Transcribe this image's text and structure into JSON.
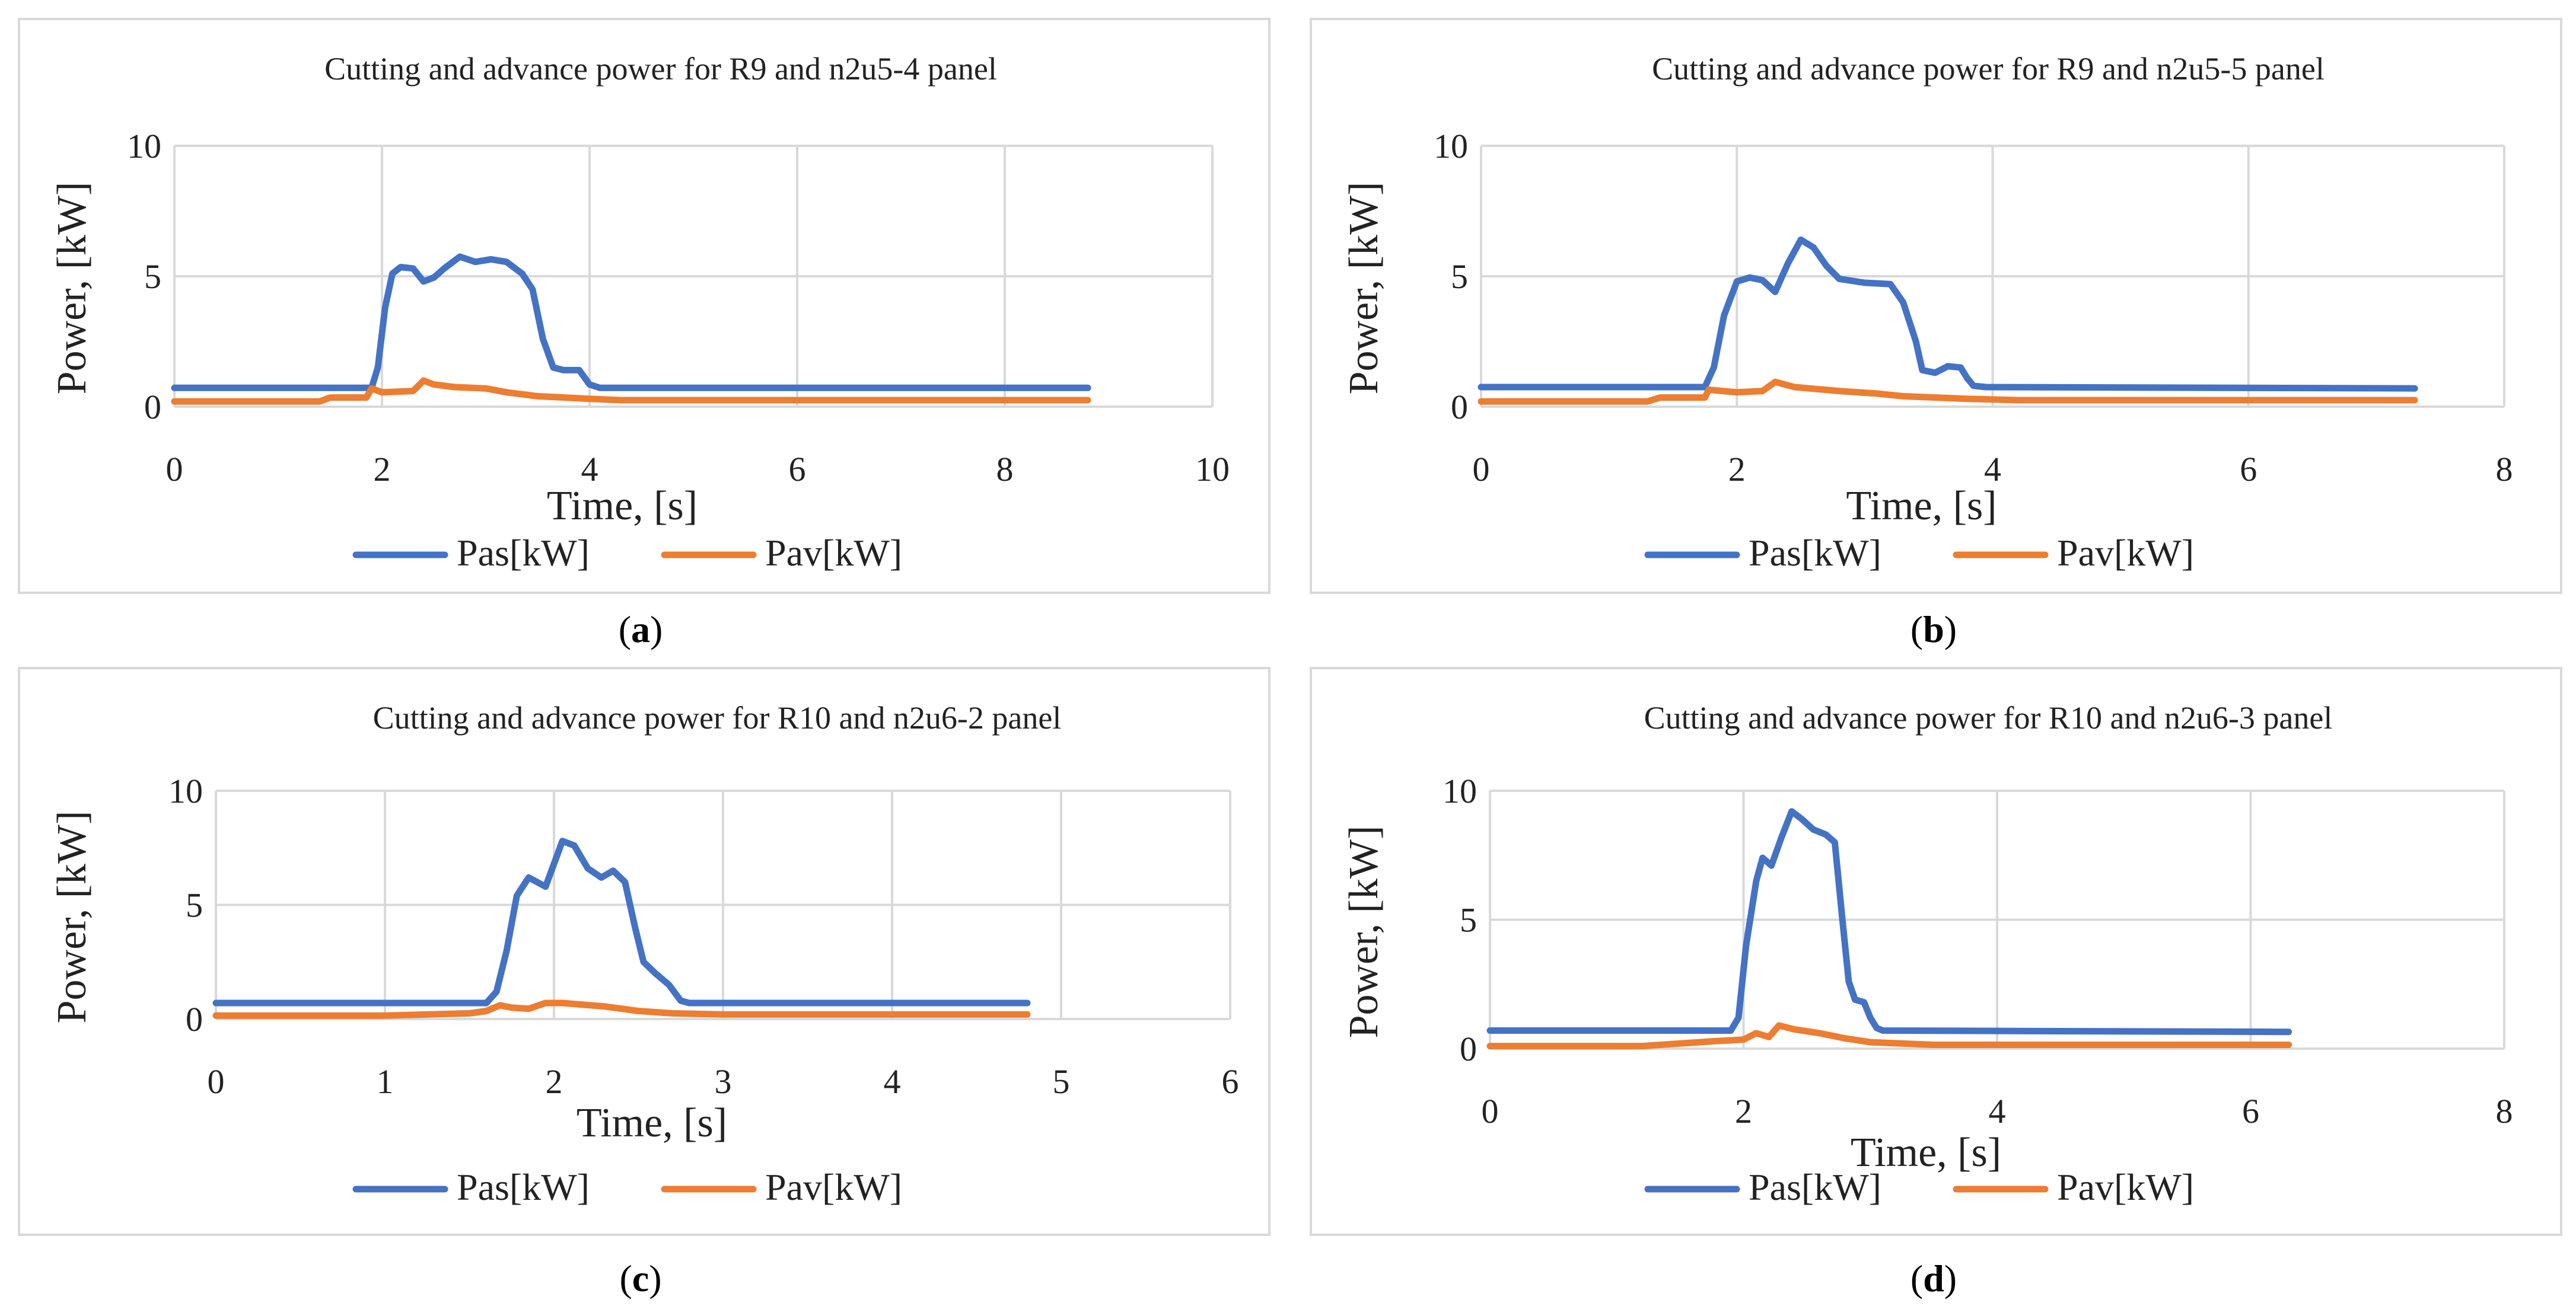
{
  "colors": {
    "pas": "#4472C4",
    "pav": "#ED7D31",
    "grid": "#d9d9d9",
    "border": "#d9d9d9"
  },
  "panels": [
    {
      "caption_open": "(",
      "caption_letter": "a",
      "caption_close": ")",
      "chart_data": {
        "type": "line",
        "title": "Cutting and advance power for R9 and n2u5-4 panel",
        "xlabel": "Time, [s]",
        "ylabel": "Power, [kW]",
        "xlim": [
          0,
          10
        ],
        "ylim": [
          0,
          10
        ],
        "xticks": [
          0,
          2,
          4,
          6,
          8,
          10
        ],
        "yticks": [
          0,
          5,
          10
        ],
        "legend": "bottom",
        "series": [
          {
            "name": "Pas[kW]",
            "key": "pas",
            "points": [
              [
                0,
                0.72
              ],
              [
                1.9,
                0.72
              ],
              [
                1.96,
                1.5
              ],
              [
                2.03,
                3.8
              ],
              [
                2.1,
                5.1
              ],
              [
                2.18,
                5.35
              ],
              [
                2.3,
                5.3
              ],
              [
                2.4,
                4.8
              ],
              [
                2.5,
                4.95
              ],
              [
                2.6,
                5.3
              ],
              [
                2.75,
                5.75
              ],
              [
                2.9,
                5.55
              ],
              [
                3.05,
                5.65
              ],
              [
                3.2,
                5.55
              ],
              [
                3.35,
                5.1
              ],
              [
                3.45,
                4.5
              ],
              [
                3.55,
                2.6
              ],
              [
                3.65,
                1.5
              ],
              [
                3.75,
                1.4
              ],
              [
                3.9,
                1.4
              ],
              [
                4.0,
                0.85
              ],
              [
                4.1,
                0.72
              ],
              [
                8.8,
                0.72
              ]
            ]
          },
          {
            "name": "Pav[kW]",
            "key": "pav",
            "points": [
              [
                0,
                0.2
              ],
              [
                1.4,
                0.2
              ],
              [
                1.5,
                0.35
              ],
              [
                1.85,
                0.35
              ],
              [
                1.9,
                0.7
              ],
              [
                2.0,
                0.55
              ],
              [
                2.3,
                0.6
              ],
              [
                2.4,
                1.0
              ],
              [
                2.5,
                0.85
              ],
              [
                2.7,
                0.75
              ],
              [
                3.0,
                0.7
              ],
              [
                3.2,
                0.55
              ],
              [
                3.5,
                0.4
              ],
              [
                4.0,
                0.3
              ],
              [
                4.3,
                0.25
              ],
              [
                8.8,
                0.25
              ]
            ]
          }
        ]
      }
    },
    {
      "caption_open": "(",
      "caption_letter": "b",
      "caption_close": ")",
      "chart_data": {
        "type": "line",
        "title": "Cutting and advance power for R9 and n2u5-5 panel",
        "xlabel": "Time, [s]",
        "ylabel": "Power, [kW]",
        "xlim": [
          0,
          8
        ],
        "ylim": [
          0,
          10
        ],
        "xticks": [
          0,
          2,
          4,
          6,
          8
        ],
        "yticks": [
          0,
          5,
          10
        ],
        "legend": "bottom",
        "series": [
          {
            "name": "Pas[kW]",
            "key": "pas",
            "points": [
              [
                0,
                0.75
              ],
              [
                1.75,
                0.75
              ],
              [
                1.82,
                1.5
              ],
              [
                1.9,
                3.5
              ],
              [
                2.0,
                4.8
              ],
              [
                2.1,
                4.95
              ],
              [
                2.2,
                4.85
              ],
              [
                2.3,
                4.4
              ],
              [
                2.4,
                5.5
              ],
              [
                2.5,
                6.4
              ],
              [
                2.6,
                6.1
              ],
              [
                2.7,
                5.4
              ],
              [
                2.8,
                4.9
              ],
              [
                3.0,
                4.75
              ],
              [
                3.2,
                4.7
              ],
              [
                3.3,
                4.0
              ],
              [
                3.4,
                2.5
              ],
              [
                3.45,
                1.4
              ],
              [
                3.55,
                1.3
              ],
              [
                3.65,
                1.55
              ],
              [
                3.75,
                1.5
              ],
              [
                3.8,
                1.1
              ],
              [
                3.85,
                0.8
              ],
              [
                3.95,
                0.75
              ],
              [
                7.3,
                0.7
              ]
            ]
          },
          {
            "name": "Pav[kW]",
            "key": "pav",
            "points": [
              [
                0,
                0.2
              ],
              [
                1.3,
                0.2
              ],
              [
                1.4,
                0.35
              ],
              [
                1.75,
                0.35
              ],
              [
                1.78,
                0.65
              ],
              [
                2.0,
                0.55
              ],
              [
                2.2,
                0.6
              ],
              [
                2.3,
                0.95
              ],
              [
                2.45,
                0.75
              ],
              [
                2.8,
                0.6
              ],
              [
                3.1,
                0.5
              ],
              [
                3.3,
                0.4
              ],
              [
                3.8,
                0.3
              ],
              [
                4.2,
                0.25
              ],
              [
                7.3,
                0.25
              ]
            ]
          }
        ]
      }
    },
    {
      "caption_open": "(",
      "caption_letter": "c",
      "caption_close": ")",
      "chart_data": {
        "type": "line",
        "title": "Cutting and advance power for R10 and n2u6-2 panel",
        "xlabel": "Time, [s]",
        "ylabel": "Power, [kW]",
        "xlim": [
          0,
          6
        ],
        "ylim": [
          0,
          10
        ],
        "xticks": [
          0,
          1,
          2,
          3,
          4,
          5,
          6
        ],
        "yticks": [
          0,
          5,
          10
        ],
        "legend": "bottom",
        "series": [
          {
            "name": "Pas[kW]",
            "key": "pas",
            "points": [
              [
                0,
                0.7
              ],
              [
                1.6,
                0.7
              ],
              [
                1.66,
                1.2
              ],
              [
                1.72,
                3.0
              ],
              [
                1.78,
                5.4
              ],
              [
                1.85,
                6.2
              ],
              [
                1.95,
                5.8
              ],
              [
                2.0,
                6.8
              ],
              [
                2.05,
                7.8
              ],
              [
                2.12,
                7.6
              ],
              [
                2.2,
                6.6
              ],
              [
                2.28,
                6.2
              ],
              [
                2.35,
                6.5
              ],
              [
                2.42,
                6.0
              ],
              [
                2.48,
                4.0
              ],
              [
                2.53,
                2.5
              ],
              [
                2.6,
                2.0
              ],
              [
                2.68,
                1.5
              ],
              [
                2.75,
                0.8
              ],
              [
                2.8,
                0.7
              ],
              [
                4.8,
                0.7
              ]
            ]
          },
          {
            "name": "Pav[kW]",
            "key": "pav",
            "points": [
              [
                0,
                0.15
              ],
              [
                1.0,
                0.15
              ],
              [
                1.5,
                0.25
              ],
              [
                1.6,
                0.35
              ],
              [
                1.68,
                0.6
              ],
              [
                1.75,
                0.5
              ],
              [
                1.85,
                0.45
              ],
              [
                1.95,
                0.7
              ],
              [
                2.05,
                0.7
              ],
              [
                2.3,
                0.55
              ],
              [
                2.5,
                0.35
              ],
              [
                2.7,
                0.25
              ],
              [
                3.0,
                0.2
              ],
              [
                4.8,
                0.2
              ]
            ]
          }
        ]
      }
    },
    {
      "caption_open": "(",
      "caption_letter": "d",
      "caption_close": ")",
      "chart_data": {
        "type": "line",
        "title": "Cutting and advance power for R10 and n2u6-3 panel",
        "xlabel": "Time, [s]",
        "ylabel": "Power, [kW]",
        "xlim": [
          0,
          8
        ],
        "ylim": [
          0,
          10
        ],
        "xticks": [
          0,
          2,
          4,
          6,
          8
        ],
        "yticks": [
          0,
          5,
          10
        ],
        "legend": "bottom",
        "series": [
          {
            "name": "Pas[kW]",
            "key": "pas",
            "points": [
              [
                0,
                0.7
              ],
              [
                1.9,
                0.7
              ],
              [
                1.96,
                1.2
              ],
              [
                2.02,
                4.0
              ],
              [
                2.1,
                6.5
              ],
              [
                2.15,
                7.4
              ],
              [
                2.22,
                7.1
              ],
              [
                2.3,
                8.2
              ],
              [
                2.38,
                9.2
              ],
              [
                2.46,
                8.9
              ],
              [
                2.55,
                8.5
              ],
              [
                2.65,
                8.3
              ],
              [
                2.72,
                8.0
              ],
              [
                2.78,
                5.0
              ],
              [
                2.83,
                2.6
              ],
              [
                2.88,
                1.9
              ],
              [
                2.95,
                1.8
              ],
              [
                3.0,
                1.2
              ],
              [
                3.05,
                0.8
              ],
              [
                3.1,
                0.7
              ],
              [
                6.3,
                0.65
              ]
            ]
          },
          {
            "name": "Pav[kW]",
            "key": "pav",
            "points": [
              [
                0,
                0.1
              ],
              [
                1.2,
                0.1
              ],
              [
                1.8,
                0.3
              ],
              [
                2.0,
                0.35
              ],
              [
                2.1,
                0.6
              ],
              [
                2.2,
                0.45
              ],
              [
                2.28,
                0.9
              ],
              [
                2.4,
                0.75
              ],
              [
                2.6,
                0.6
              ],
              [
                2.8,
                0.4
              ],
              [
                3.0,
                0.25
              ],
              [
                3.5,
                0.15
              ],
              [
                6.3,
                0.15
              ]
            ]
          }
        ]
      }
    }
  ]
}
